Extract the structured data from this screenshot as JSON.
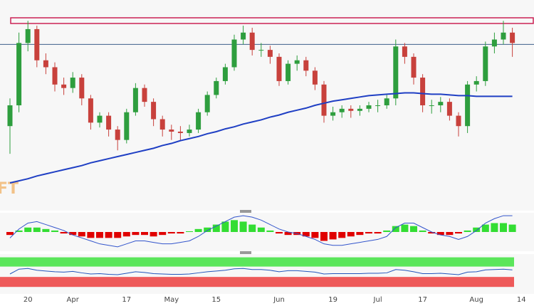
{
  "chart_data": [
    {
      "type": "candlestick",
      "watermark": "FT",
      "categories": [
        null,
        null,
        "20",
        null,
        null,
        null,
        null,
        "Apr",
        null,
        null,
        null,
        null,
        null,
        "17",
        null,
        null,
        null,
        null,
        "May",
        null,
        null,
        null,
        null,
        "15",
        null,
        null,
        null,
        null,
        null,
        null,
        "Jun",
        null,
        null,
        null,
        null,
        null,
        "19",
        null,
        null,
        null,
        null,
        "Jul",
        null,
        null,
        null,
        null,
        "17",
        null,
        null,
        null,
        null,
        null,
        "Aug",
        null,
        null,
        null,
        null,
        "14"
      ],
      "open": [
        120,
        150,
        240,
        260,
        215,
        205,
        180,
        175,
        190,
        160,
        125,
        135,
        115,
        100,
        140,
        175,
        155,
        130,
        115,
        112,
        110,
        115,
        140,
        165,
        185,
        205,
        245,
        255,
        230,
        230,
        220,
        185,
        210,
        215,
        200,
        180,
        135,
        140,
        145,
        142,
        145,
        150,
        150,
        160,
        235,
        220,
        190,
        150,
        150,
        155,
        135,
        120,
        180,
        185,
        235,
        245,
        255,
        null
      ],
      "high": [
        160,
        255,
        272,
        265,
        225,
        212,
        190,
        198,
        195,
        165,
        140,
        140,
        120,
        145,
        182,
        180,
        160,
        135,
        122,
        120,
        122,
        145,
        170,
        190,
        210,
        252,
        265,
        262,
        240,
        236,
        225,
        215,
        222,
        220,
        205,
        185,
        148,
        150,
        150,
        150,
        155,
        158,
        165,
        245,
        240,
        225,
        195,
        158,
        162,
        160,
        140,
        185,
        192,
        242,
        255,
        272,
        262,
        null
      ],
      "low": [
        80,
        140,
        228,
        205,
        195,
        170,
        165,
        168,
        150,
        115,
        118,
        105,
        85,
        95,
        135,
        148,
        120,
        105,
        100,
        100,
        105,
        110,
        135,
        160,
        180,
        200,
        238,
        222,
        220,
        210,
        178,
        180,
        200,
        192,
        172,
        125,
        128,
        132,
        132,
        135,
        140,
        140,
        145,
        150,
        210,
        180,
        140,
        138,
        140,
        128,
        105,
        110,
        170,
        178,
        225,
        238,
        220,
        null
      ],
      "close": [
        150,
        240,
        260,
        215,
        205,
        180,
        175,
        190,
        160,
        125,
        135,
        115,
        100,
        140,
        175,
        155,
        130,
        115,
        112,
        110,
        115,
        140,
        165,
        185,
        205,
        245,
        255,
        230,
        230,
        220,
        185,
        210,
        215,
        200,
        180,
        135,
        140,
        145,
        142,
        145,
        150,
        150,
        160,
        235,
        220,
        190,
        150,
        150,
        155,
        135,
        120,
        180,
        185,
        235,
        245,
        255,
        240,
        null
      ],
      "up_color": "#2e9e3e",
      "down_color": "#c8413c",
      "moving_average": {
        "color": "#1f3fc4",
        "values": [
          38,
          41,
          44,
          48,
          51,
          54,
          57,
          60,
          63,
          67,
          70,
          73,
          76,
          79,
          82,
          85,
          88,
          92,
          95,
          99,
          102,
          105,
          109,
          112,
          116,
          119,
          123,
          126,
          129,
          133,
          136,
          140,
          143,
          146,
          150,
          153,
          156,
          158,
          160,
          162,
          164,
          165,
          166,
          167,
          168,
          168,
          167,
          166,
          166,
          165,
          164,
          164,
          163,
          163,
          163,
          163,
          163,
          null
        ]
      },
      "hline": {
        "value": 238,
        "color": "#3d5f8a"
      },
      "ylim": [
        0,
        300
      ]
    },
    {
      "type": "bar",
      "values": [
        -2,
        1,
        3,
        3,
        2,
        1,
        -1,
        -2,
        -3,
        -4,
        -4,
        -4,
        -4,
        -3,
        -2,
        -2,
        -3,
        -2,
        -1,
        -1,
        0.5,
        2,
        3,
        5,
        7,
        8,
        7,
        5,
        3,
        1,
        -1,
        -2,
        -2,
        -3,
        -4,
        -6,
        -5,
        -4,
        -3,
        -2,
        -1,
        -1,
        1,
        4,
        5,
        4,
        1,
        -1,
        -2,
        -2,
        -1,
        1,
        3,
        5,
        6,
        6,
        5,
        null
      ],
      "up_color": "#33dd33",
      "down_color": "#e00000",
      "line": {
        "color": "#3355cc",
        "values": [
          -4,
          2,
          6,
          7,
          5,
          3,
          1,
          -2,
          -4,
          -6,
          -8,
          -9,
          -10,
          -8,
          -6,
          -6,
          -7,
          -8,
          -8,
          -7,
          -6,
          -3,
          1,
          4,
          7,
          10,
          11,
          10,
          8,
          5,
          2,
          0,
          -1,
          -3,
          -5,
          -8,
          -9,
          -9,
          -8,
          -7,
          -6,
          -5,
          -3,
          3,
          6,
          6,
          3,
          0,
          -2,
          -3,
          -5,
          -3,
          1,
          6,
          9,
          11,
          11,
          null
        ]
      },
      "ylim": [
        -12,
        12
      ]
    },
    {
      "type": "line",
      "values": [
        50,
        63,
        65,
        60,
        58,
        56,
        55,
        57,
        53,
        50,
        51,
        49,
        48,
        52,
        56,
        54,
        51,
        50,
        49,
        49,
        50,
        53,
        56,
        58,
        60,
        64,
        65,
        62,
        62,
        60,
        56,
        59,
        59,
        57,
        55,
        50,
        51,
        51,
        51,
        51,
        52,
        52,
        53,
        62,
        60,
        56,
        51,
        51,
        52,
        50,
        48,
        55,
        56,
        61,
        62,
        63,
        61,
        null
      ],
      "color": "#2255bb",
      "bands": [
        {
          "from": 70,
          "to": 95,
          "color": "#5be65b"
        },
        {
          "from": 15,
          "to": 42,
          "color": "#ee5a5a"
        }
      ],
      "ylim": [
        0,
        100
      ]
    }
  ]
}
